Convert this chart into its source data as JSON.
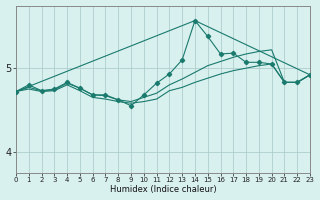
{
  "xlabel": "Humidex (Indice chaleur)",
  "bg_color": "#d8f0ee",
  "line_color": "#1a7a6e",
  "grid_color": "#b0cece",
  "x_ticks": [
    0,
    1,
    2,
    3,
    4,
    5,
    6,
    7,
    8,
    9,
    10,
    11,
    12,
    13,
    14,
    15,
    16,
    17,
    18,
    19,
    20,
    21,
    22,
    23
  ],
  "y_ticks": [
    4,
    5
  ],
  "xlim": [
    0,
    23
  ],
  "ylim": [
    3.75,
    5.75
  ],
  "series": [
    {
      "x": [
        0,
        1,
        2,
        3,
        4,
        5,
        6,
        7,
        8,
        9,
        10,
        11,
        12,
        13,
        14,
        15,
        16,
        17,
        18,
        19,
        20,
        21,
        22,
        23
      ],
      "y": [
        4.72,
        4.8,
        4.73,
        4.75,
        4.83,
        4.76,
        4.68,
        4.68,
        4.62,
        4.55,
        4.68,
        4.82,
        4.93,
        5.1,
        5.57,
        5.38,
        5.17,
        5.18,
        5.07,
        5.07,
        5.05,
        4.83,
        4.83,
        4.92
      ]
    },
    {
      "x": [
        0,
        1,
        2,
        3,
        4,
        5,
        6,
        7,
        8,
        9,
        10,
        11,
        12,
        13,
        14,
        15,
        16,
        17,
        18,
        19,
        20,
        21,
        22,
        23
      ],
      "y": [
        4.72,
        4.75,
        4.72,
        4.73,
        4.8,
        4.73,
        4.65,
        4.63,
        4.6,
        4.58,
        4.6,
        4.63,
        4.73,
        4.77,
        4.83,
        4.88,
        4.93,
        4.97,
        5.0,
        5.03,
        5.05,
        4.83,
        4.83,
        4.92
      ]
    },
    {
      "x": [
        0,
        1,
        2,
        3,
        4,
        5,
        6,
        7,
        8,
        9,
        10,
        11,
        12,
        13,
        14,
        15,
        16,
        17,
        18,
        19,
        20,
        21,
        22,
        23
      ],
      "y": [
        4.72,
        4.77,
        4.73,
        4.74,
        4.82,
        4.76,
        4.68,
        4.67,
        4.62,
        4.6,
        4.65,
        4.7,
        4.8,
        4.87,
        4.95,
        5.03,
        5.08,
        5.13,
        5.17,
        5.2,
        5.22,
        4.83,
        4.83,
        4.92
      ]
    },
    {
      "x": [
        0,
        14,
        23
      ],
      "y": [
        4.72,
        5.57,
        4.92
      ]
    }
  ]
}
